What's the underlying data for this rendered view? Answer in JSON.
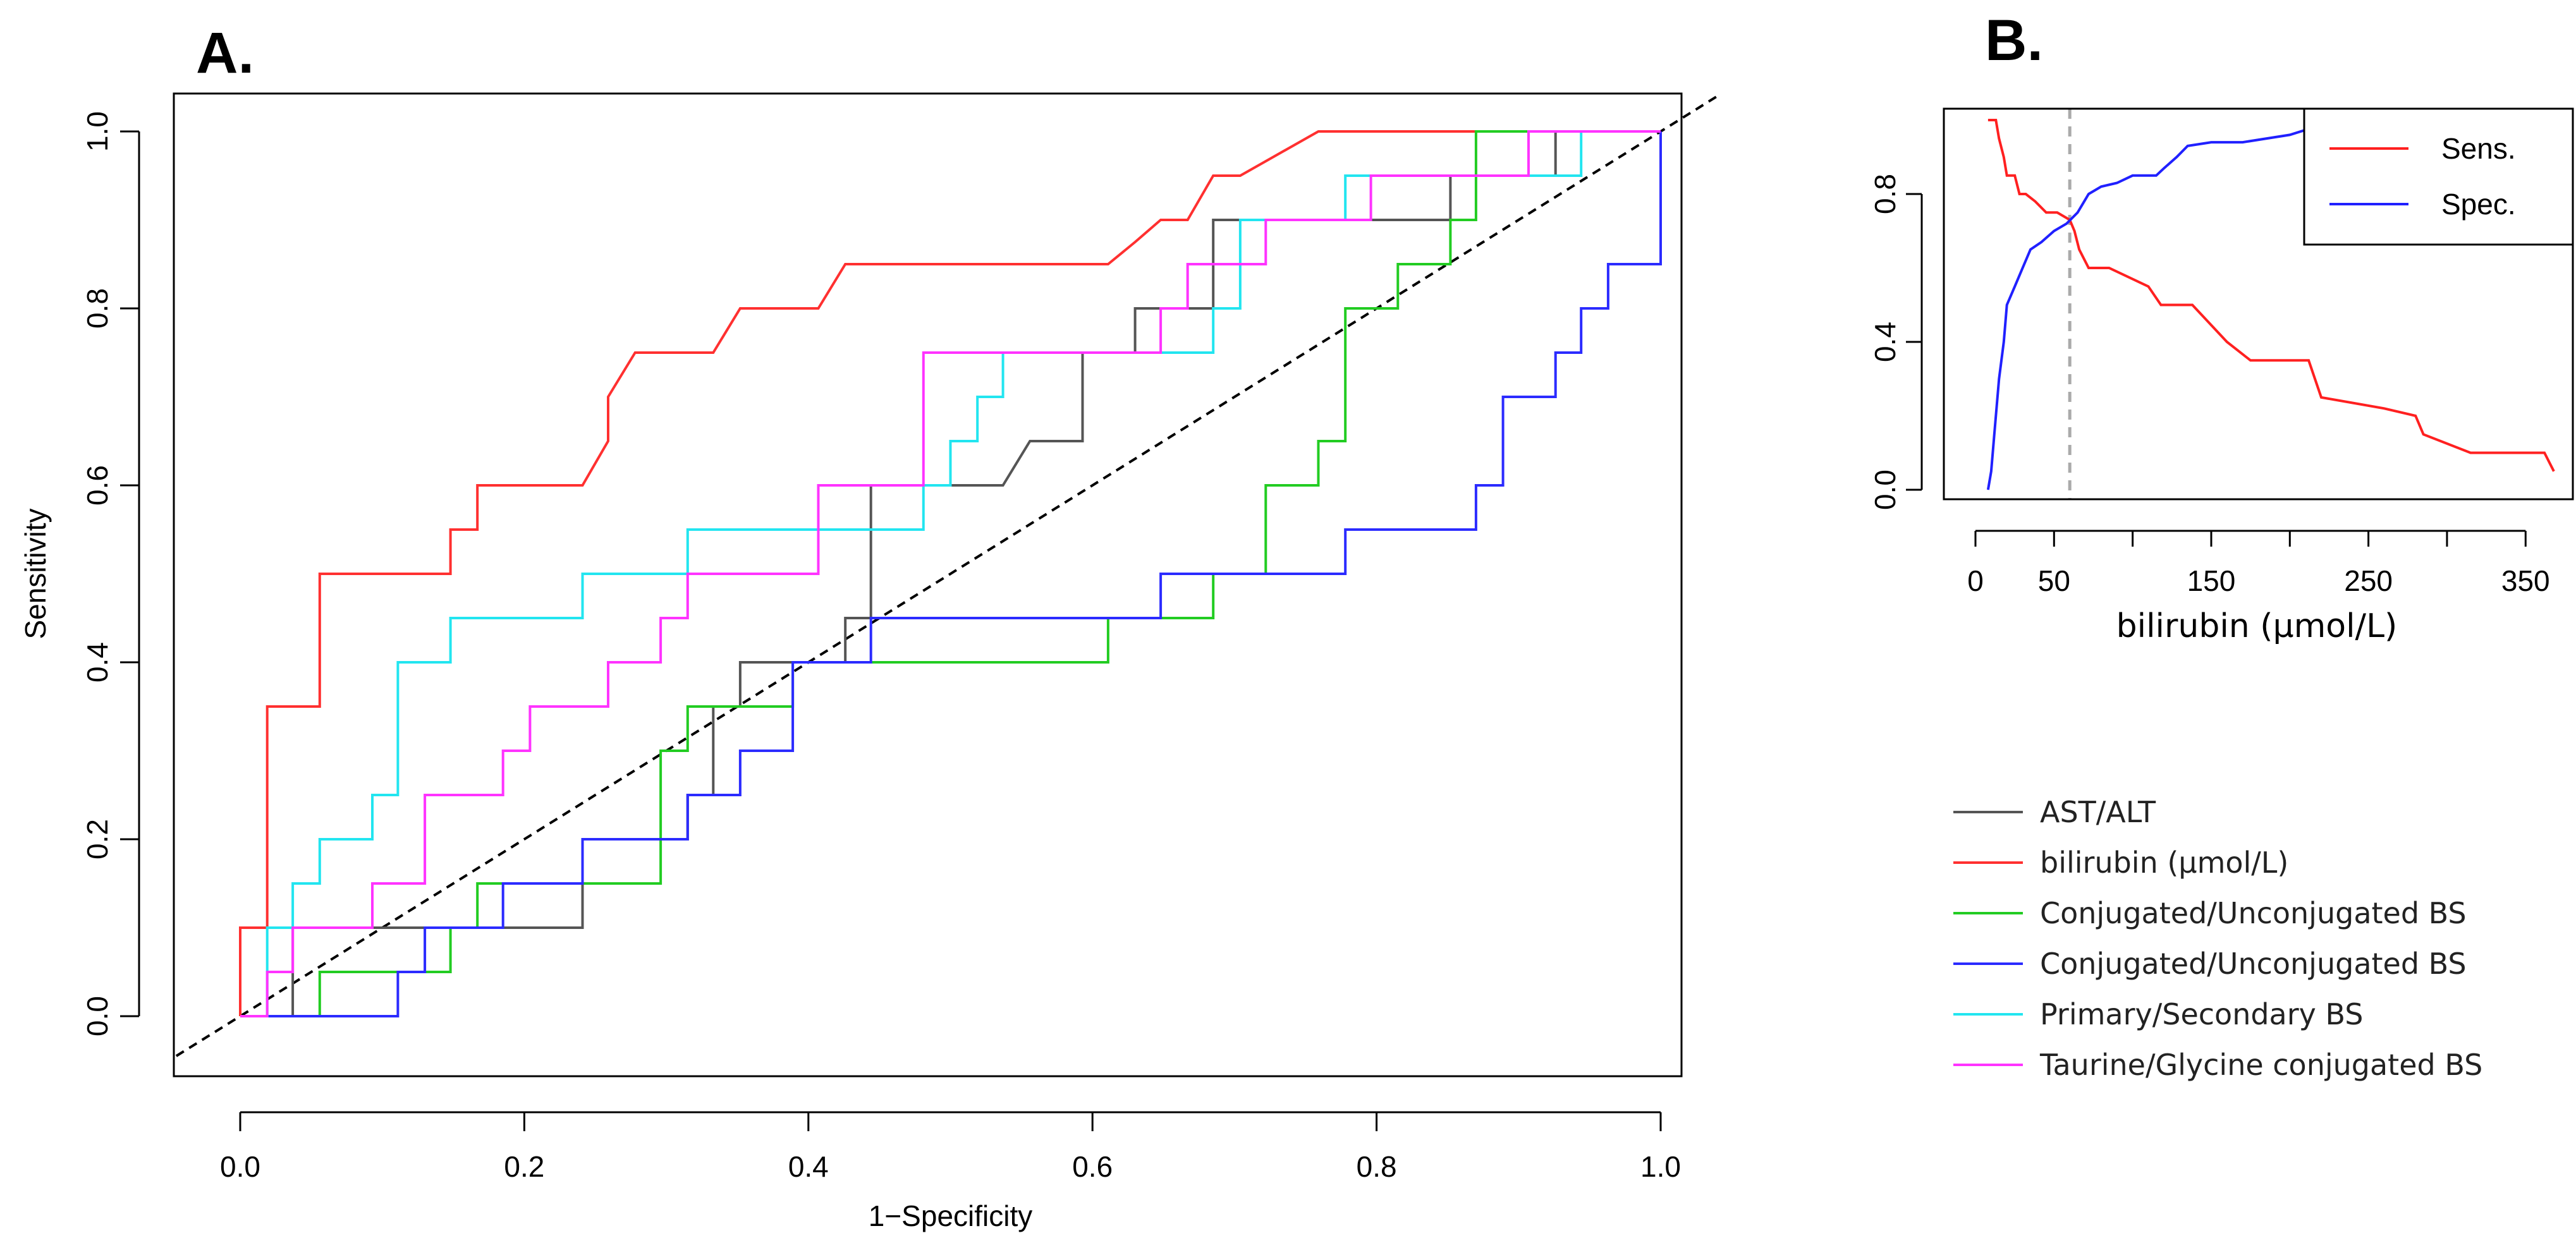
{
  "chart_data": [
    {
      "panel": "A.",
      "type": "line",
      "title": "",
      "xlabel": "1−Specificity",
      "ylabel": "Sensitivity",
      "xlim": [
        0,
        1
      ],
      "ylim": [
        0,
        1
      ],
      "xticks": [
        "0.0",
        "0.2",
        "0.4",
        "0.6",
        "0.8",
        "1.0"
      ],
      "yticks": [
        "0.0",
        "0.2",
        "0.4",
        "0.6",
        "0.8",
        "1.0"
      ],
      "reference_line": {
        "x": [
          0,
          1
        ],
        "y": [
          0,
          1
        ],
        "style": "dashed",
        "color": "#000000"
      },
      "legend_position": "bottom-right outside",
      "series": [
        {
          "name": "AST/ALT",
          "color": "#555555",
          "x": [
            0,
            0.037,
            0.037,
            0.111,
            0.111,
            0.241,
            0.241,
            0.259,
            0.259,
            0.315,
            0.315,
            0.333,
            0.333,
            0.352,
            0.352,
            0.426,
            0.426,
            0.444,
            0.444,
            0.537,
            0.556,
            0.593,
            0.593,
            0.63,
            0.63,
            0.685,
            0.685,
            0.852,
            0.852,
            0.926,
            0.926,
            1.0
          ],
          "y": [
            0,
            0,
            0.1,
            0.1,
            0.1,
            0.1,
            0.2,
            0.2,
            0.2,
            0.2,
            0.25,
            0.25,
            0.35,
            0.35,
            0.4,
            0.4,
            0.45,
            0.45,
            0.6,
            0.6,
            0.65,
            0.65,
            0.75,
            0.75,
            0.8,
            0.8,
            0.9,
            0.9,
            0.95,
            0.95,
            1.0,
            1.0
          ]
        },
        {
          "name": "bilirubin (μmol/L)",
          "color": "#ff3030",
          "x": [
            0,
            0,
            0.019,
            0.019,
            0.056,
            0.056,
            0.148,
            0.148,
            0.167,
            0.167,
            0.241,
            0.259,
            0.259,
            0.278,
            0.333,
            0.352,
            0.407,
            0.426,
            0.611,
            0.63,
            0.648,
            0.667,
            0.685,
            0.704,
            0.759,
            1.0
          ],
          "y": [
            0,
            0.1,
            0.1,
            0.35,
            0.35,
            0.5,
            0.5,
            0.55,
            0.55,
            0.6,
            0.6,
            0.65,
            0.7,
            0.75,
            0.75,
            0.8,
            0.8,
            0.85,
            0.85,
            0.875,
            0.9,
            0.9,
            0.95,
            0.95,
            1.0,
            1.0
          ]
        },
        {
          "name": "Conjugated/Unconjugated BS",
          "color": "#22cc22",
          "x": [
            0,
            0.056,
            0.056,
            0.148,
            0.148,
            0.167,
            0.167,
            0.296,
            0.296,
            0.315,
            0.315,
            0.333,
            0.333,
            0.389,
            0.389,
            0.444,
            0.444,
            0.611,
            0.611,
            0.685,
            0.685,
            0.722,
            0.722,
            0.759,
            0.759,
            0.778,
            0.778,
            0.815,
            0.815,
            0.852,
            0.852,
            0.87,
            0.87,
            1.0
          ],
          "y": [
            0,
            0,
            0.05,
            0.05,
            0.1,
            0.1,
            0.15,
            0.15,
            0.3,
            0.3,
            0.35,
            0.35,
            0.35,
            0.35,
            0.4,
            0.4,
            0.4,
            0.4,
            0.45,
            0.45,
            0.5,
            0.5,
            0.6,
            0.6,
            0.65,
            0.65,
            0.8,
            0.8,
            0.85,
            0.85,
            0.9,
            0.9,
            1.0,
            1.0
          ]
        },
        {
          "name": "Conjugated/Unconjugated BS",
          "color": "#2b2bff",
          "x": [
            0,
            0.111,
            0.111,
            0.13,
            0.13,
            0.185,
            0.185,
            0.241,
            0.241,
            0.315,
            0.315,
            0.352,
            0.352,
            0.389,
            0.389,
            0.444,
            0.444,
            0.648,
            0.648,
            0.685,
            0.685,
            0.778,
            0.778,
            0.87,
            0.87,
            0.889,
            0.889,
            0.926,
            0.926,
            0.944,
            0.944,
            0.963,
            0.963,
            1.0,
            1.0
          ],
          "y": [
            0,
            0,
            0.05,
            0.05,
            0.1,
            0.1,
            0.15,
            0.15,
            0.2,
            0.2,
            0.25,
            0.25,
            0.3,
            0.3,
            0.4,
            0.4,
            0.45,
            0.45,
            0.5,
            0.5,
            0.5,
            0.5,
            0.55,
            0.55,
            0.6,
            0.6,
            0.7,
            0.7,
            0.75,
            0.75,
            0.8,
            0.8,
            0.85,
            0.85,
            1.0
          ]
        },
        {
          "name": "Primary/Secondary BS",
          "color": "#22e5f0",
          "x": [
            0,
            0.019,
            0.019,
            0.037,
            0.037,
            0.056,
            0.056,
            0.093,
            0.093,
            0.111,
            0.111,
            0.148,
            0.148,
            0.241,
            0.241,
            0.315,
            0.315,
            0.481,
            0.481,
            0.5,
            0.5,
            0.519,
            0.519,
            0.537,
            0.537,
            0.685,
            0.685,
            0.704,
            0.704,
            0.778,
            0.778,
            0.944,
            0.944,
            1.0
          ],
          "y": [
            0,
            0,
            0.1,
            0.1,
            0.15,
            0.15,
            0.2,
            0.2,
            0.25,
            0.25,
            0.4,
            0.4,
            0.45,
            0.45,
            0.5,
            0.5,
            0.55,
            0.55,
            0.6,
            0.6,
            0.65,
            0.65,
            0.7,
            0.7,
            0.75,
            0.75,
            0.8,
            0.8,
            0.9,
            0.9,
            0.95,
            0.95,
            1.0,
            1.0
          ]
        },
        {
          "name": "Taurine/Glycine conjugated BS",
          "color": "#ff33ff",
          "x": [
            0,
            0.019,
            0.019,
            0.037,
            0.037,
            0.093,
            0.093,
            0.13,
            0.13,
            0.185,
            0.185,
            0.204,
            0.204,
            0.259,
            0.259,
            0.296,
            0.296,
            0.315,
            0.315,
            0.407,
            0.407,
            0.481,
            0.481,
            0.648,
            0.648,
            0.667,
            0.667,
            0.722,
            0.722,
            0.796,
            0.796,
            0.907,
            0.907,
            1.0
          ],
          "y": [
            0,
            0,
            0.05,
            0.05,
            0.1,
            0.1,
            0.15,
            0.15,
            0.25,
            0.25,
            0.3,
            0.3,
            0.35,
            0.35,
            0.4,
            0.4,
            0.45,
            0.45,
            0.5,
            0.5,
            0.6,
            0.6,
            0.75,
            0.75,
            0.8,
            0.8,
            0.85,
            0.85,
            0.9,
            0.9,
            0.95,
            0.95,
            1.0,
            1.0
          ]
        }
      ]
    },
    {
      "panel": "B.",
      "type": "line",
      "title": "",
      "xlabel": "bilirubin (μmol/L)",
      "ylabel": "",
      "xlim": [
        0,
        370
      ],
      "ylim": [
        0,
        1
      ],
      "xticks": [
        "0",
        "50",
        "150",
        "250",
        "350"
      ],
      "xtick_values": [
        0,
        50,
        150,
        250,
        350
      ],
      "yticks": [
        "0.0",
        "0.4",
        "0.8"
      ],
      "ytick_values": [
        0,
        0.4,
        0.8
      ],
      "cutoff_line": {
        "x": 60,
        "style": "dashed",
        "color": "#aaaaaa"
      },
      "legend_position": "top-right",
      "series": [
        {
          "name": "Sens.",
          "color": "#ff2020",
          "x": [
            8,
            13,
            15,
            18,
            20,
            25,
            28,
            32,
            38,
            45,
            52,
            60,
            63,
            66,
            72,
            85,
            110,
            118,
            138,
            160,
            175,
            212,
            220,
            260,
            280,
            285,
            315,
            362,
            368
          ],
          "y": [
            1.0,
            1.0,
            0.95,
            0.9,
            0.85,
            0.85,
            0.8,
            0.8,
            0.78,
            0.75,
            0.75,
            0.73,
            0.7,
            0.65,
            0.6,
            0.6,
            0.55,
            0.5,
            0.5,
            0.4,
            0.35,
            0.35,
            0.25,
            0.22,
            0.2,
            0.15,
            0.1,
            0.1,
            0.05
          ]
        },
        {
          "name": "Spec.",
          "color": "#2020ff",
          "x": [
            8,
            10,
            12,
            15,
            18,
            20,
            25,
            30,
            35,
            42,
            50,
            58,
            65,
            72,
            80,
            90,
            100,
            115,
            120,
            128,
            135,
            150,
            170,
            200,
            215
          ],
          "y": [
            0.0,
            0.05,
            0.15,
            0.3,
            0.4,
            0.5,
            0.55,
            0.6,
            0.65,
            0.67,
            0.7,
            0.72,
            0.75,
            0.8,
            0.82,
            0.83,
            0.85,
            0.85,
            0.87,
            0.9,
            0.93,
            0.94,
            0.94,
            0.96,
            0.98
          ]
        }
      ]
    }
  ]
}
